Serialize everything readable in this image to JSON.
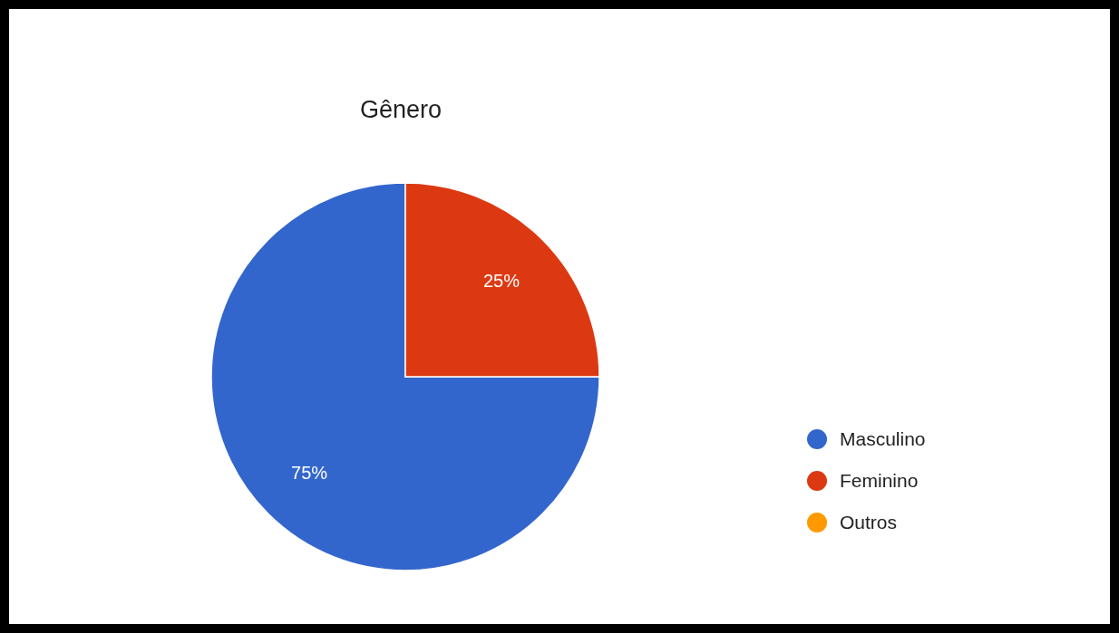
{
  "chart_data": {
    "type": "pie",
    "title": "Gênero",
    "categories": [
      "Masculino",
      "Feminino",
      "Outros"
    ],
    "values": [
      75,
      25,
      0
    ],
    "colors": [
      "#3366cc",
      "#dc3912",
      "#ff9900"
    ],
    "value_labels": [
      "75%",
      "25%",
      null
    ],
    "legend": "right"
  }
}
